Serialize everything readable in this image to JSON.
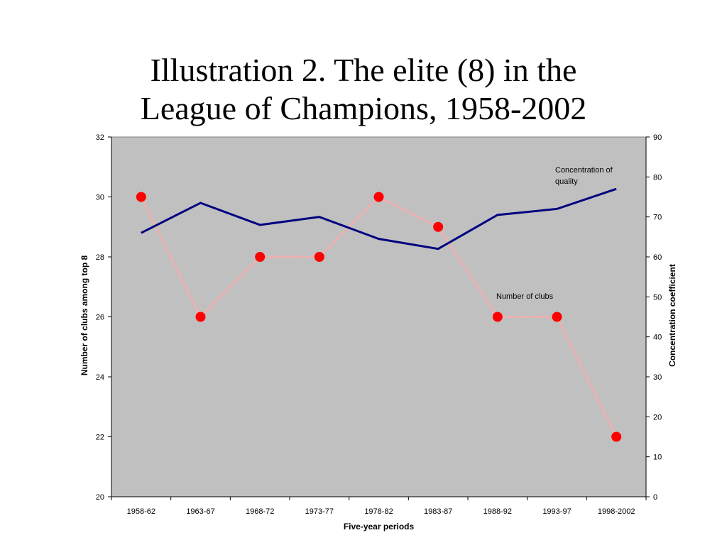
{
  "slide": {
    "title_line1": "Illustration 2. The elite (8) in the",
    "title_line2": "League of Champions, 1958-2002"
  },
  "chart_data": {
    "type": "line",
    "categories": [
      "1958-62",
      "1963-67",
      "1968-72",
      "1973-77",
      "1978-82",
      "1983-87",
      "1988-92",
      "1993-97",
      "1998-2002"
    ],
    "series": [
      {
        "name": "Number of clubs",
        "axis": "left",
        "color": "#ff0000",
        "line_color": "#ffaaaa",
        "values": [
          30,
          26,
          28,
          28,
          30,
          29,
          26,
          26,
          22
        ]
      },
      {
        "name": "Concentration of quality",
        "axis": "right",
        "color": "#000080",
        "values": [
          66,
          73.5,
          68,
          70,
          64.5,
          62,
          70.5,
          72,
          77
        ]
      }
    ],
    "xlabel": "Five-year periods",
    "ylabel_left": "Number of clubs among top 8",
    "ylabel_right": "Concentration  coefficient",
    "ylim_left": [
      20,
      32
    ],
    "yticks_left": [
      "20",
      "22",
      "24",
      "26",
      "28",
      "30",
      "32"
    ],
    "ylim_right": [
      0,
      90
    ],
    "yticks_right": [
      "0",
      "10",
      "20",
      "30",
      "40",
      "50",
      "60",
      "70",
      "80",
      "90"
    ],
    "annotations": {
      "concentration_line1": "Concentration of",
      "concentration_line2": "quality",
      "clubs": "Number of clubs"
    },
    "plot_background": "#c0c0c0",
    "grid": false,
    "legend": "none"
  }
}
